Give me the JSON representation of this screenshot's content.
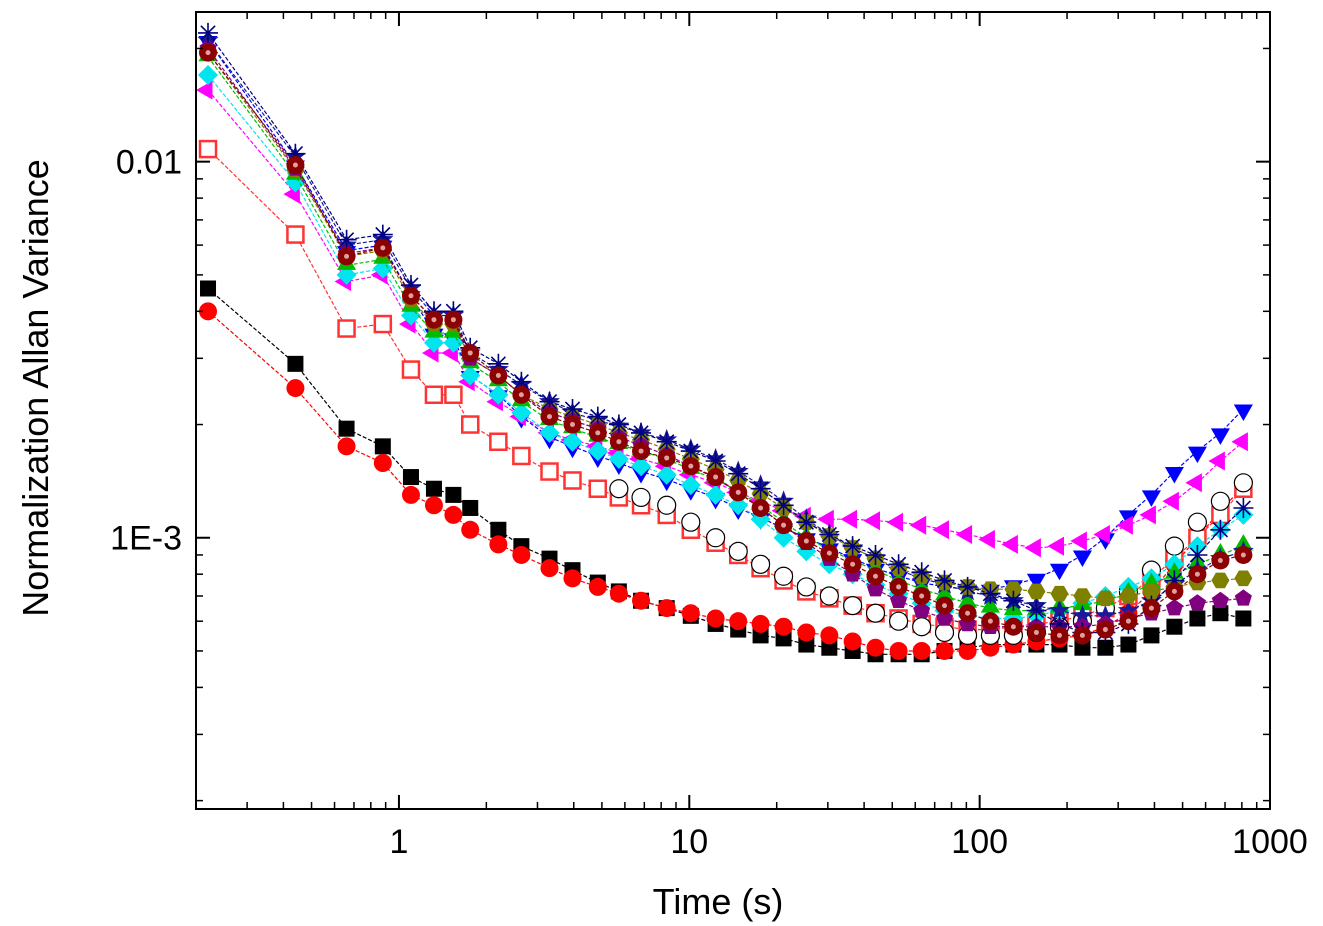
{
  "chart_data": {
    "type": "scatter",
    "xlabel": "Time (s)",
    "ylabel": "Normalization Allan Variance",
    "x_scale": "log",
    "y_scale": "log",
    "xlim": [
      0.2,
      1000
    ],
    "ylim": [
      0.00019,
      0.025
    ],
    "x_ticks": [
      1,
      10,
      100,
      1000
    ],
    "x_tick_labels": [
      "1",
      "10",
      "100",
      "1000"
    ],
    "y_ticks": [
      0.001,
      0.01
    ],
    "y_tick_labels": [
      "1E-3",
      "0.01"
    ],
    "grid": false,
    "legend": "none",
    "x": [
      0.22,
      0.44,
      0.66,
      0.88,
      1.1,
      1.32,
      1.54,
      1.76,
      2.2,
      2.64,
      3.3,
      3.96,
      4.84,
      5.72,
      6.82,
      8.36,
      10.12,
      12.32,
      14.74,
      17.6,
      21.12,
      25.3,
      30.36,
      36.52,
      43.78,
      52.58,
      63.14,
      75.68,
      90.86,
      108.9,
      130.68,
      156.86,
      188.32,
      225.94,
      271.04,
      325.38,
      390.5,
      468.6,
      562.32,
      674.74,
      809.6
    ],
    "series": [
      {
        "marker": "square",
        "color": "#000000",
        "line": true,
        "values": [
          0.0046,
          0.0029,
          0.00195,
          0.00175,
          0.00145,
          0.00135,
          0.0013,
          0.0012,
          0.00105,
          0.00095,
          0.00088,
          0.00082,
          0.00076,
          0.00072,
          0.00068,
          0.00065,
          0.00062,
          0.00059,
          0.00057,
          0.00055,
          0.00054,
          0.00052,
          0.00051,
          0.0005,
          0.00049,
          0.00049,
          0.00049,
          0.0005,
          0.00051,
          0.00052,
          0.00052,
          0.00052,
          0.00052,
          0.00051,
          0.00051,
          0.00052,
          0.00055,
          0.00058,
          0.00061,
          0.00063,
          0.00061
        ]
      },
      {
        "marker": "circle",
        "color": "#ff0000",
        "line": true,
        "values": [
          0.004,
          0.0025,
          0.00175,
          0.00158,
          0.0013,
          0.00122,
          0.00115,
          0.00105,
          0.00096,
          0.0009,
          0.00083,
          0.00078,
          0.00074,
          0.00071,
          0.00068,
          0.00065,
          0.00063,
          0.00061,
          0.0006,
          0.00059,
          0.00058,
          0.00056,
          0.00055,
          0.00053,
          0.00051,
          0.0005,
          0.0005,
          0.0005,
          0.0005,
          0.00051,
          0.00052,
          0.00053,
          0.00054,
          0.00055,
          0.00058,
          0.00063,
          0.00072,
          0.00085,
          0.001,
          0.00118,
          0.00137
        ]
      },
      {
        "marker": "square-open",
        "color": "#ff3333",
        "line": true,
        "values": [
          0.0108,
          0.0064,
          0.0036,
          0.0037,
          0.0028,
          0.0024,
          0.0024,
          0.002,
          0.0018,
          0.00165,
          0.0015,
          0.00142,
          0.00135,
          0.00128,
          0.00122,
          0.00115,
          0.00105,
          0.00097,
          0.0009,
          0.00083,
          0.00077,
          0.00072,
          0.00069,
          0.00066,
          0.00063,
          0.00061,
          0.00059,
          0.00058,
          0.00057,
          0.00057,
          0.00058,
          0.00059,
          0.0006,
          0.00062,
          0.00065,
          0.0007,
          0.00078,
          0.00088,
          0.001,
          0.00115,
          0.00135
        ]
      },
      {
        "marker": "circle-open",
        "color": "#000000",
        "line": false,
        "values": [
          null,
          null,
          null,
          null,
          null,
          null,
          null,
          null,
          null,
          null,
          null,
          null,
          null,
          0.00135,
          0.00128,
          0.00122,
          0.0011,
          0.001,
          0.00092,
          0.00085,
          0.00079,
          0.00074,
          0.0007,
          0.00066,
          0.00063,
          0.0006,
          0.00058,
          0.00056,
          0.00055,
          0.00055,
          0.00055,
          0.00056,
          0.00058,
          0.0006,
          0.00065,
          0.00072,
          0.00082,
          0.00095,
          0.0011,
          0.00125,
          0.0014
        ]
      },
      {
        "marker": "triangle-down",
        "color": "#0000ff",
        "line": true,
        "values": [
          0.021,
          0.0098,
          0.0058,
          0.006,
          0.0044,
          0.0035,
          0.0034,
          0.0027,
          0.0024,
          0.0021,
          0.00185,
          0.00175,
          0.00165,
          0.00158,
          0.0015,
          0.00143,
          0.00135,
          0.00128,
          0.0012,
          0.00113,
          0.00106,
          0.001,
          0.00094,
          0.00088,
          0.00083,
          0.00079,
          0.00076,
          0.00074,
          0.00073,
          0.00073,
          0.00075,
          0.00078,
          0.00083,
          0.0009,
          0.001,
          0.00115,
          0.0013,
          0.0015,
          0.0017,
          0.0019,
          0.0022
        ]
      },
      {
        "marker": "triangle-left",
        "color": "#ff00ff",
        "line": true,
        "values": [
          0.0155,
          0.0082,
          0.0048,
          0.005,
          0.0037,
          0.0031,
          0.0031,
          0.0026,
          0.0023,
          0.0021,
          0.0019,
          0.00182,
          0.00175,
          0.00168,
          0.00162,
          0.00155,
          0.00147,
          0.0014,
          0.00132,
          0.00125,
          0.00118,
          0.00114,
          0.00112,
          0.00112,
          0.00111,
          0.0011,
          0.00108,
          0.00105,
          0.00102,
          0.00099,
          0.00096,
          0.00094,
          0.00095,
          0.00098,
          0.00102,
          0.00108,
          0.00115,
          0.00125,
          0.0014,
          0.0016,
          0.0018
        ]
      },
      {
        "marker": "diamond",
        "color": "#00e5ee",
        "line": true,
        "values": [
          0.017,
          0.0088,
          0.005,
          0.0052,
          0.0039,
          0.0033,
          0.0033,
          0.0027,
          0.0024,
          0.00215,
          0.0019,
          0.0018,
          0.0017,
          0.00162,
          0.00155,
          0.00147,
          0.00138,
          0.0013,
          0.00122,
          0.00112,
          0.001,
          0.00092,
          0.00085,
          0.0008,
          0.00075,
          0.00071,
          0.00067,
          0.00064,
          0.00062,
          0.00061,
          0.00061,
          0.00062,
          0.00064,
          0.00067,
          0.0007,
          0.00074,
          0.00078,
          0.00085,
          0.00095,
          0.00105,
          0.00115
        ]
      },
      {
        "marker": "triangle-up",
        "color": "#00bb00",
        "line": true,
        "values": [
          0.019,
          0.0092,
          0.0053,
          0.0055,
          0.0041,
          0.0035,
          0.0035,
          0.0029,
          0.0026,
          0.0023,
          0.00205,
          0.00195,
          0.00185,
          0.00177,
          0.0017,
          0.00162,
          0.00152,
          0.00143,
          0.00133,
          0.00122,
          0.0011,
          0.001,
          0.00093,
          0.00087,
          0.00082,
          0.00077,
          0.00073,
          0.0007,
          0.00067,
          0.00065,
          0.00064,
          0.00064,
          0.00065,
          0.00066,
          0.00068,
          0.00071,
          0.00075,
          0.0008,
          0.00085,
          0.0009,
          0.00095
        ]
      },
      {
        "marker": "star",
        "color": "#1a1a99",
        "line": true,
        "values": [
          0.021,
          0.0103,
          0.006,
          0.0062,
          0.0046,
          0.0039,
          0.0039,
          0.0031,
          0.0028,
          0.00255,
          0.0023,
          0.00215,
          0.00205,
          0.00198,
          0.0019,
          0.00182,
          0.00172,
          0.00162,
          0.0015,
          0.00138,
          0.00125,
          0.00112,
          0.00102,
          0.00094,
          0.00088,
          0.00082,
          0.00078,
          0.00075,
          0.00072,
          0.0007,
          0.00068,
          0.00066,
          0.00064,
          0.00062,
          0.00062,
          0.00064,
          0.00068,
          0.00075,
          0.00082,
          0.00088,
          0.00092
        ]
      },
      {
        "marker": "hexagon",
        "color": "#808000",
        "line": true,
        "values": [
          0.0195,
          0.0095,
          0.0056,
          0.0058,
          0.0043,
          0.0037,
          0.0037,
          0.003,
          0.0027,
          0.0024,
          0.0022,
          0.0021,
          0.002,
          0.0019,
          0.00182,
          0.00172,
          0.00162,
          0.00152,
          0.00142,
          0.00131,
          0.0012,
          0.0011,
          0.00101,
          0.00094,
          0.00088,
          0.00083,
          0.00079,
          0.00076,
          0.00074,
          0.00073,
          0.00073,
          0.00072,
          0.00071,
          0.0007,
          0.00069,
          0.0007,
          0.00072,
          0.00074,
          0.00076,
          0.00077,
          0.00078
        ]
      },
      {
        "marker": "pentagon",
        "color": "#800080",
        "line": true,
        "values": [
          0.02,
          0.0096,
          0.0057,
          0.0059,
          0.0044,
          0.0038,
          0.0038,
          0.003,
          0.0027,
          0.0024,
          0.00215,
          0.00205,
          0.00195,
          0.00185,
          0.00176,
          0.00166,
          0.00155,
          0.00144,
          0.00132,
          0.0012,
          0.00108,
          0.00097,
          0.00088,
          0.0008,
          0.00073,
          0.00068,
          0.00064,
          0.00061,
          0.00059,
          0.00058,
          0.00058,
          0.00058,
          0.00058,
          0.00058,
          0.00059,
          0.00061,
          0.00063,
          0.00065,
          0.00067,
          0.00068,
          0.00069
        ]
      },
      {
        "marker": "asterisk",
        "color": "#000080",
        "line": true,
        "values": [
          0.022,
          0.0105,
          0.0062,
          0.0064,
          0.0047,
          0.004,
          0.004,
          0.0032,
          0.0029,
          0.0026,
          0.0023,
          0.0022,
          0.0021,
          0.002,
          0.0019,
          0.0018,
          0.0017,
          0.0016,
          0.00148,
          0.00135,
          0.00122,
          0.0011,
          0.00102,
          0.00095,
          0.0009,
          0.00085,
          0.00081,
          0.00077,
          0.00074,
          0.00071,
          0.00068,
          0.00064,
          0.00059,
          0.00056,
          0.00056,
          0.00059,
          0.00066,
          0.00077,
          0.0009,
          0.00105,
          0.0012
        ]
      },
      {
        "marker": "circle-dotted",
        "color": "#8b0000",
        "line": true,
        "values": [
          0.0195,
          0.0098,
          0.0056,
          0.0059,
          0.0044,
          0.0038,
          0.0038,
          0.0031,
          0.0027,
          0.0024,
          0.0021,
          0.002,
          0.0019,
          0.0018,
          0.0017,
          0.00163,
          0.00155,
          0.00145,
          0.00132,
          0.0012,
          0.00108,
          0.00098,
          0.00091,
          0.00085,
          0.00079,
          0.00074,
          0.0007,
          0.00066,
          0.00063,
          0.0006,
          0.00058,
          0.00056,
          0.00055,
          0.00055,
          0.00057,
          0.0006,
          0.00065,
          0.00072,
          0.0008,
          0.00087,
          0.0009
        ]
      }
    ]
  }
}
